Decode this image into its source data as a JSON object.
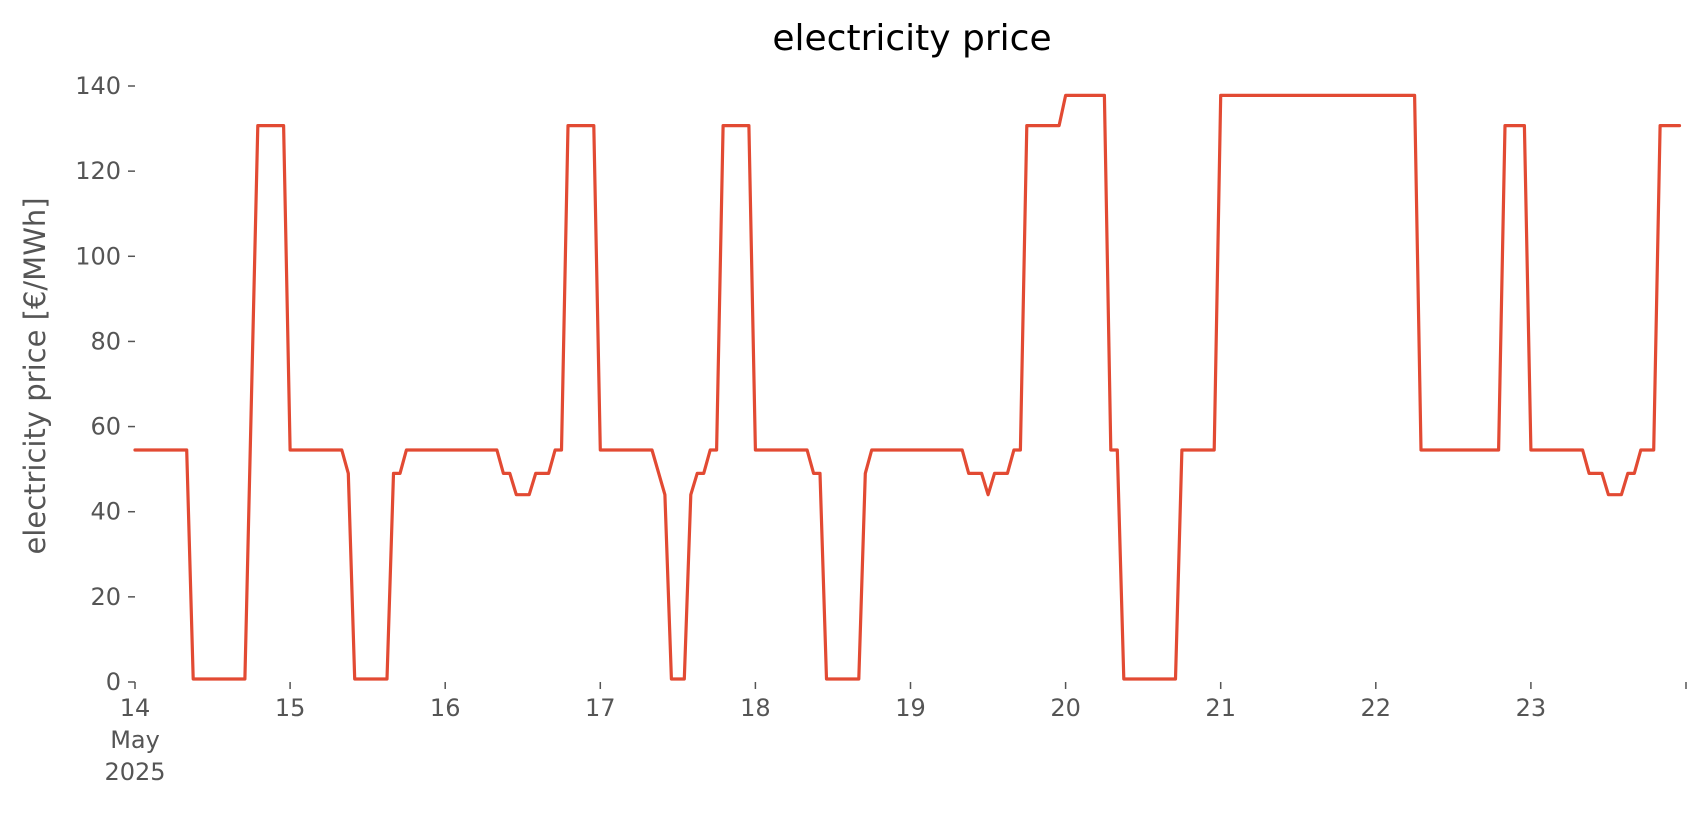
{
  "chart_data": {
    "type": "line",
    "title": "electricity price",
    "xlabel": "",
    "ylabel": "electricity price [€/MWh]",
    "xlim": [
      "2025-05-14T00:00",
      "2025-05-23T23:00"
    ],
    "ylim": [
      0,
      140
    ],
    "grid": false,
    "legend": "none",
    "yticks": [
      0,
      20,
      40,
      60,
      80,
      100,
      120,
      140
    ],
    "xticks": [
      {
        "x": "2025-05-14T00:00",
        "lines": [
          "14",
          "May",
          "2025"
        ]
      },
      {
        "x": "2025-05-15T00:00",
        "lines": [
          "15"
        ]
      },
      {
        "x": "2025-05-16T00:00",
        "lines": [
          "16"
        ]
      },
      {
        "x": "2025-05-17T00:00",
        "lines": [
          "17"
        ]
      },
      {
        "x": "2025-05-18T00:00",
        "lines": [
          "18"
        ]
      },
      {
        "x": "2025-05-19T00:00",
        "lines": [
          "19"
        ]
      },
      {
        "x": "2025-05-20T00:00",
        "lines": [
          "20"
        ]
      },
      {
        "x": "2025-05-21T00:00",
        "lines": [
          "21"
        ]
      },
      {
        "x": "2025-05-22T00:00",
        "lines": [
          "22"
        ]
      },
      {
        "x": "2025-05-23T00:00",
        "lines": [
          "23"
        ]
      },
      {
        "x": "2025-05-24T00:00",
        "lines": [
          ""
        ]
      }
    ],
    "series": [
      {
        "color": "#e24a33",
        "points": [
          [
            "2025-05-14T00:00",
            54.5
          ],
          [
            "2025-05-14T08:00",
            54.5
          ],
          [
            "2025-05-14T09:00",
            0.7
          ],
          [
            "2025-05-14T17:00",
            0.7
          ],
          [
            "2025-05-14T19:00",
            130.7
          ],
          [
            "2025-05-14T23:00",
            130.7
          ],
          [
            "2025-05-15T00:00",
            54.5
          ],
          [
            "2025-05-15T08:00",
            54.5
          ],
          [
            "2025-05-15T09:00",
            49.0
          ],
          [
            "2025-05-15T10:00",
            0.7
          ],
          [
            "2025-05-15T15:00",
            0.7
          ],
          [
            "2025-05-15T16:00",
            49.0
          ],
          [
            "2025-05-15T17:00",
            49.0
          ],
          [
            "2025-05-15T18:00",
            54.5
          ],
          [
            "2025-05-16T08:00",
            54.5
          ],
          [
            "2025-05-16T09:00",
            49.0
          ],
          [
            "2025-05-16T10:00",
            49.0
          ],
          [
            "2025-05-16T11:00",
            44.0
          ],
          [
            "2025-05-16T13:00",
            44.0
          ],
          [
            "2025-05-16T14:00",
            49.0
          ],
          [
            "2025-05-16T16:00",
            49.0
          ],
          [
            "2025-05-16T17:00",
            54.5
          ],
          [
            "2025-05-16T18:00",
            54.5
          ],
          [
            "2025-05-16T19:00",
            130.7
          ],
          [
            "2025-05-16T23:00",
            130.7
          ],
          [
            "2025-05-17T00:00",
            54.5
          ],
          [
            "2025-05-17T08:00",
            54.5
          ],
          [
            "2025-05-17T10:00",
            44.0
          ],
          [
            "2025-05-17T11:00",
            0.7
          ],
          [
            "2025-05-17T13:00",
            0.7
          ],
          [
            "2025-05-17T14:00",
            44.0
          ],
          [
            "2025-05-17T15:00",
            49.0
          ],
          [
            "2025-05-17T16:00",
            49.0
          ],
          [
            "2025-05-17T17:00",
            54.5
          ],
          [
            "2025-05-17T18:00",
            54.5
          ],
          [
            "2025-05-17T19:00",
            130.7
          ],
          [
            "2025-05-17T23:00",
            130.7
          ],
          [
            "2025-05-18T00:00",
            54.5
          ],
          [
            "2025-05-18T08:00",
            54.5
          ],
          [
            "2025-05-18T09:00",
            49.0
          ],
          [
            "2025-05-18T10:00",
            49.0
          ],
          [
            "2025-05-18T11:00",
            0.7
          ],
          [
            "2025-05-18T16:00",
            0.7
          ],
          [
            "2025-05-18T17:00",
            49.0
          ],
          [
            "2025-05-18T18:00",
            54.5
          ],
          [
            "2025-05-19T08:00",
            54.5
          ],
          [
            "2025-05-19T09:00",
            49.0
          ],
          [
            "2025-05-19T11:00",
            49.0
          ],
          [
            "2025-05-19T12:00",
            44.0
          ],
          [
            "2025-05-19T13:00",
            49.0
          ],
          [
            "2025-05-19T15:00",
            49.0
          ],
          [
            "2025-05-19T16:00",
            54.5
          ],
          [
            "2025-05-19T17:00",
            54.5
          ],
          [
            "2025-05-19T18:00",
            130.7
          ],
          [
            "2025-05-19T23:00",
            130.7
          ],
          [
            "2025-05-20T00:00",
            137.8
          ],
          [
            "2025-05-20T06:00",
            137.8
          ],
          [
            "2025-05-20T07:00",
            54.5
          ],
          [
            "2025-05-20T08:00",
            54.5
          ],
          [
            "2025-05-20T09:00",
            0.7
          ],
          [
            "2025-05-20T17:00",
            0.7
          ],
          [
            "2025-05-20T18:00",
            54.5
          ],
          [
            "2025-05-20T23:00",
            54.5
          ],
          [
            "2025-05-21T00:00",
            137.8
          ],
          [
            "2025-05-22T06:00",
            137.8
          ],
          [
            "2025-05-22T07:00",
            54.5
          ],
          [
            "2025-05-22T19:00",
            54.5
          ],
          [
            "2025-05-22T20:00",
            130.7
          ],
          [
            "2025-05-22T23:00",
            130.7
          ],
          [
            "2025-05-23T00:00",
            54.5
          ],
          [
            "2025-05-23T08:00",
            54.5
          ],
          [
            "2025-05-23T09:00",
            49.0
          ],
          [
            "2025-05-23T11:00",
            49.0
          ],
          [
            "2025-05-23T12:00",
            44.0
          ],
          [
            "2025-05-23T14:00",
            44.0
          ],
          [
            "2025-05-23T15:00",
            49.0
          ],
          [
            "2025-05-23T16:00",
            49.0
          ],
          [
            "2025-05-23T17:00",
            54.5
          ],
          [
            "2025-05-23T19:00",
            54.5
          ],
          [
            "2025-05-23T20:00",
            130.7
          ],
          [
            "2025-05-23T23:00",
            130.7
          ]
        ]
      }
    ]
  }
}
